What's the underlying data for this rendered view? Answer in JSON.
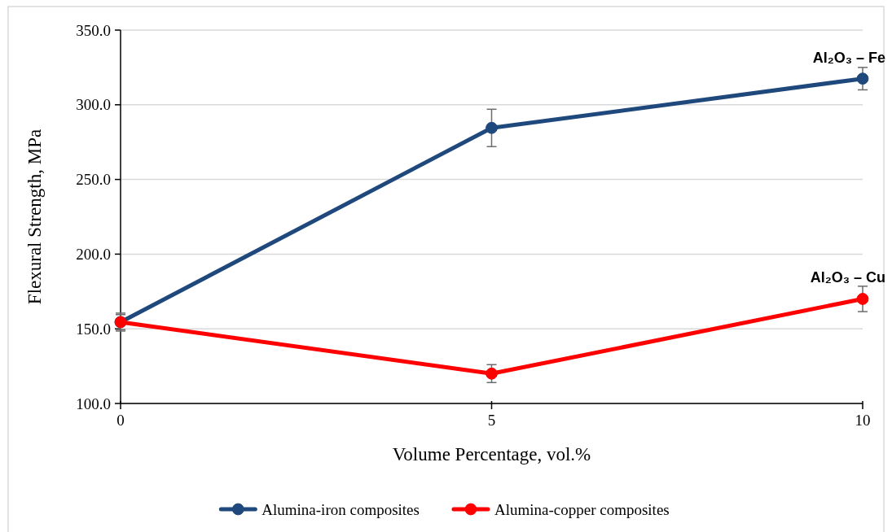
{
  "chart_data": {
    "type": "line",
    "xlabel": "Volume Percentage, vol.%",
    "ylabel": "Flexural Strength, MPa",
    "x": [
      0,
      5,
      10
    ],
    "xlim": [
      0,
      10
    ],
    "xticks": [
      0,
      5,
      10
    ],
    "ylim": [
      100,
      350
    ],
    "yticks": [
      {
        "value": 100,
        "label": "100.0"
      },
      {
        "value": 150,
        "label": "150.0"
      },
      {
        "value": 200,
        "label": "200.0"
      },
      {
        "value": 250,
        "label": "250.0"
      },
      {
        "value": 300,
        "label": "300.0"
      },
      {
        "value": 350,
        "label": "350.0"
      }
    ],
    "grid": "y",
    "legend": "bottom",
    "marker": "circle",
    "line_style": "solid",
    "series": [
      {
        "name": "Alumina-iron composites",
        "color": "#1f497d",
        "values": [
          154.5,
          284.5,
          317.5
        ],
        "errors": [
          6,
          12.5,
          7.5
        ]
      },
      {
        "name": "Alumina-copper composites",
        "color": "#ff0000",
        "values": [
          154.5,
          120,
          170
        ],
        "errors": [
          5,
          6,
          8.5
        ]
      }
    ],
    "annotations": [
      {
        "text": "Al₂O₃ – Fe",
        "x": 10,
        "y": 317.5
      },
      {
        "text": "Al₂O₃ – Cu",
        "x": 10,
        "y": 170
      }
    ]
  }
}
